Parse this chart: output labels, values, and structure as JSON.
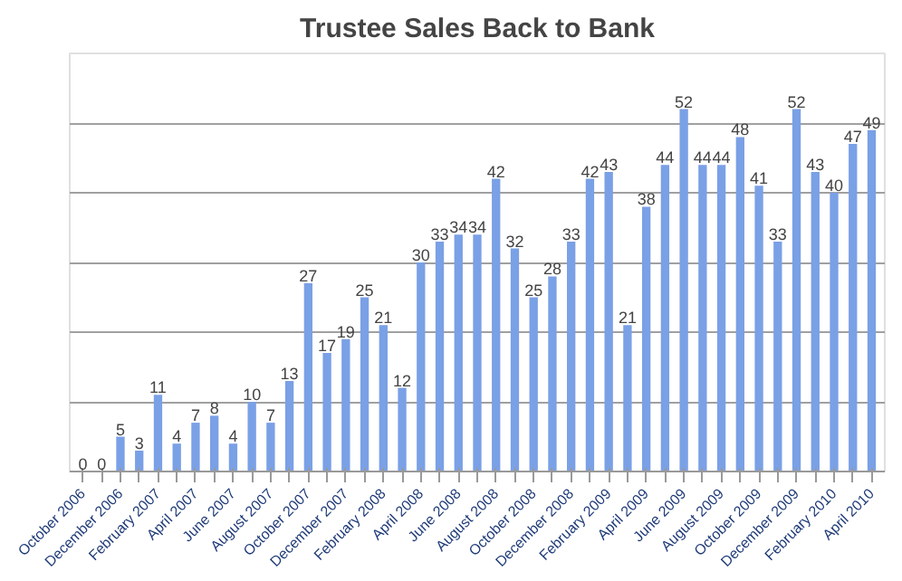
{
  "chart_data": {
    "type": "bar",
    "title": "Trustee Sales Back to Bank",
    "categories": [
      "October 2006",
      null,
      "December 2006",
      null,
      "February 2007",
      null,
      "April 2007",
      null,
      "June 2007",
      null,
      "August 2007",
      null,
      "October 2007",
      null,
      "December 2007",
      null,
      "February 2008",
      null,
      "April 2008",
      null,
      "June 2008",
      null,
      "August 2008",
      null,
      "October 2008",
      null,
      "December 2008",
      null,
      "February 2009",
      null,
      "April 2009",
      null,
      "June 2009",
      null,
      "August 2009",
      null,
      "October 2009",
      null,
      "December 2009",
      null,
      "February 2010",
      null,
      "April 2010"
    ],
    "values": [
      0,
      0,
      5,
      3,
      11,
      4,
      7,
      8,
      4,
      10,
      7,
      13,
      27,
      17,
      19,
      25,
      21,
      12,
      30,
      33,
      34,
      34,
      42,
      32,
      25,
      28,
      33,
      42,
      43,
      21,
      38,
      44,
      52,
      44,
      44,
      48,
      41,
      33,
      52,
      43,
      40,
      47,
      49
    ],
    "color": "#7aa0e6",
    "ylim": [
      0,
      60
    ],
    "yticks": [
      {
        "value": 0,
        "label": null
      },
      {
        "value": 10,
        "label": null
      },
      {
        "value": 20,
        "label": null
      },
      {
        "value": 30,
        "label": null
      },
      {
        "value": 40,
        "label": null
      },
      {
        "value": 50,
        "label": null
      }
    ],
    "grid": "y",
    "data_labels": true,
    "tick_labels": "x"
  }
}
